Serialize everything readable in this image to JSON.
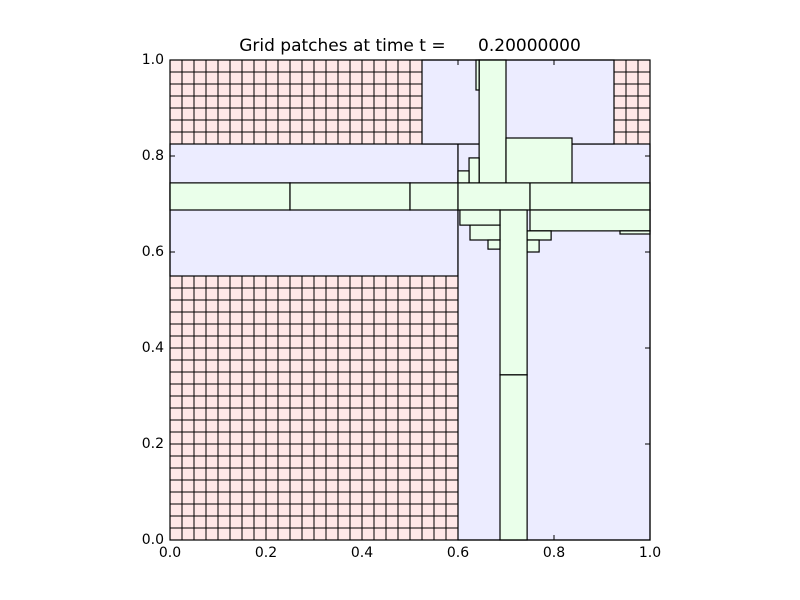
{
  "chart_data": {
    "type": "patches",
    "title": "Grid patches at time t =      0.20000000",
    "xlim": [
      0,
      1
    ],
    "ylim": [
      0,
      1
    ],
    "xticks": [
      {
        "value": 0,
        "label": "0.0"
      },
      {
        "value": 0.2,
        "label": "0.2"
      },
      {
        "value": 0.4,
        "label": "0.4"
      },
      {
        "value": 0.6,
        "label": "0.6"
      },
      {
        "value": 0.8,
        "label": "0.8"
      },
      {
        "value": 1,
        "label": "1.0"
      }
    ],
    "yticks": [
      {
        "value": 0,
        "label": "0.0"
      },
      {
        "value": 0.2,
        "label": "0.2"
      },
      {
        "value": 0.4,
        "label": "0.4"
      },
      {
        "value": 0.6,
        "label": "0.6"
      },
      {
        "value": 0.8,
        "label": "0.8"
      },
      {
        "value": 1,
        "label": "1.0"
      }
    ],
    "series": [
      {
        "color": "#ffe8e8",
        "dx": 0.025,
        "patches": [
          [
            0,
            1,
            0,
            1
          ]
        ]
      },
      {
        "color": "#ececff",
        "patches": [
          [
            0,
            0.6,
            0.55,
            0.825
          ],
          [
            0.6,
            1,
            0,
            0.825
          ],
          [
            0.525,
            0.925,
            0.825,
            1
          ]
        ]
      },
      {
        "color": "#eaffea",
        "patches": [
          [
            0,
            0.25,
            0.6875,
            0.744
          ],
          [
            0.25,
            0.5,
            0.6875,
            0.744
          ],
          [
            0.5,
            0.6,
            0.6875,
            0.744
          ],
          [
            0.6,
            0.75,
            0.6875,
            0.744
          ],
          [
            0.75,
            1,
            0.6875,
            0.744
          ],
          [
            0.75,
            1,
            0.644,
            0.6875
          ],
          [
            0.6875,
            0.744,
            0.344,
            0.6875
          ],
          [
            0.6875,
            0.744,
            0,
            0.344
          ],
          [
            0.644,
            0.7,
            0.744,
            1
          ],
          [
            0.6375,
            0.644,
            0.9375,
            1
          ],
          [
            0.7,
            0.8375,
            0.744,
            0.8375
          ],
          [
            0.623,
            0.644,
            0.744,
            0.796
          ],
          [
            0.6,
            0.623,
            0.744,
            0.769
          ],
          [
            0.604,
            0.6875,
            0.656,
            0.6875
          ],
          [
            0.625,
            0.6875,
            0.625,
            0.656
          ],
          [
            0.6625,
            0.6875,
            0.606,
            0.625
          ],
          [
            0.744,
            0.794,
            0.625,
            0.644
          ],
          [
            0.744,
            0.769,
            0.6,
            0.625
          ],
          [
            0.9375,
            1,
            0.6375,
            0.644
          ]
        ]
      }
    ]
  }
}
